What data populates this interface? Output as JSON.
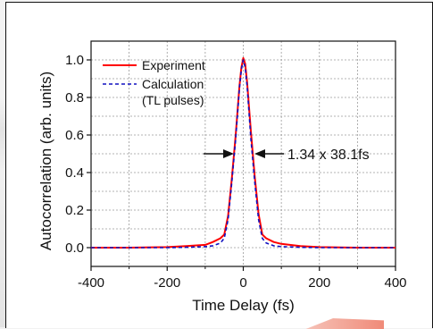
{
  "chart_data": {
    "type": "line",
    "xlabel": "Time Delay (fs)",
    "ylabel": "Autocorrelation (arb. units)",
    "xlim": [
      -400,
      400
    ],
    "ylim": [
      -0.1,
      1.1
    ],
    "xticks": [
      -400,
      -200,
      0,
      200,
      400
    ],
    "xtick_labels": [
      "-400",
      "-200",
      "0",
      "200",
      "400"
    ],
    "yticks": [
      0.0,
      0.2,
      0.4,
      0.6,
      0.8,
      1.0
    ],
    "ytick_labels": [
      "0.0",
      "0.2",
      "0.4",
      "0.6",
      "0.8",
      "1.0"
    ],
    "grid": true,
    "legend_position": "top-left",
    "annotation": "1.34 x 38.1fs",
    "series": [
      {
        "name": "Experiment",
        "color": "#ff0000",
        "style": "solid",
        "x": [
          -400,
          -300,
          -200,
          -150,
          -100,
          -80,
          -60,
          -50,
          -40,
          -30,
          -20,
          -10,
          -5,
          0,
          5,
          10,
          20,
          30,
          40,
          50,
          60,
          80,
          100,
          150,
          200,
          300,
          400
        ],
        "y": [
          0.0,
          0.0,
          0.003,
          0.008,
          0.015,
          0.03,
          0.05,
          0.07,
          0.17,
          0.37,
          0.6,
          0.86,
          0.96,
          1.01,
          0.98,
          0.88,
          0.62,
          0.38,
          0.18,
          0.07,
          0.05,
          0.03,
          0.02,
          0.008,
          0.003,
          0.0,
          0.0
        ]
      },
      {
        "name": "Calculation\n(TL pulses)",
        "color": "#1010c0",
        "style": "dashed",
        "x": [
          -400,
          -300,
          -200,
          -150,
          -100,
          -80,
          -60,
          -50,
          -40,
          -30,
          -20,
          -10,
          -5,
          0,
          5,
          10,
          20,
          30,
          40,
          50,
          60,
          80,
          100,
          150,
          200,
          300,
          400
        ],
        "y": [
          0.0,
          0.0,
          0.0,
          0.002,
          0.005,
          0.01,
          0.025,
          0.05,
          0.15,
          0.35,
          0.58,
          0.85,
          0.95,
          1.0,
          0.96,
          0.86,
          0.58,
          0.35,
          0.15,
          0.05,
          0.025,
          0.01,
          0.005,
          0.002,
          0.0,
          0.0,
          0.0
        ]
      }
    ]
  }
}
